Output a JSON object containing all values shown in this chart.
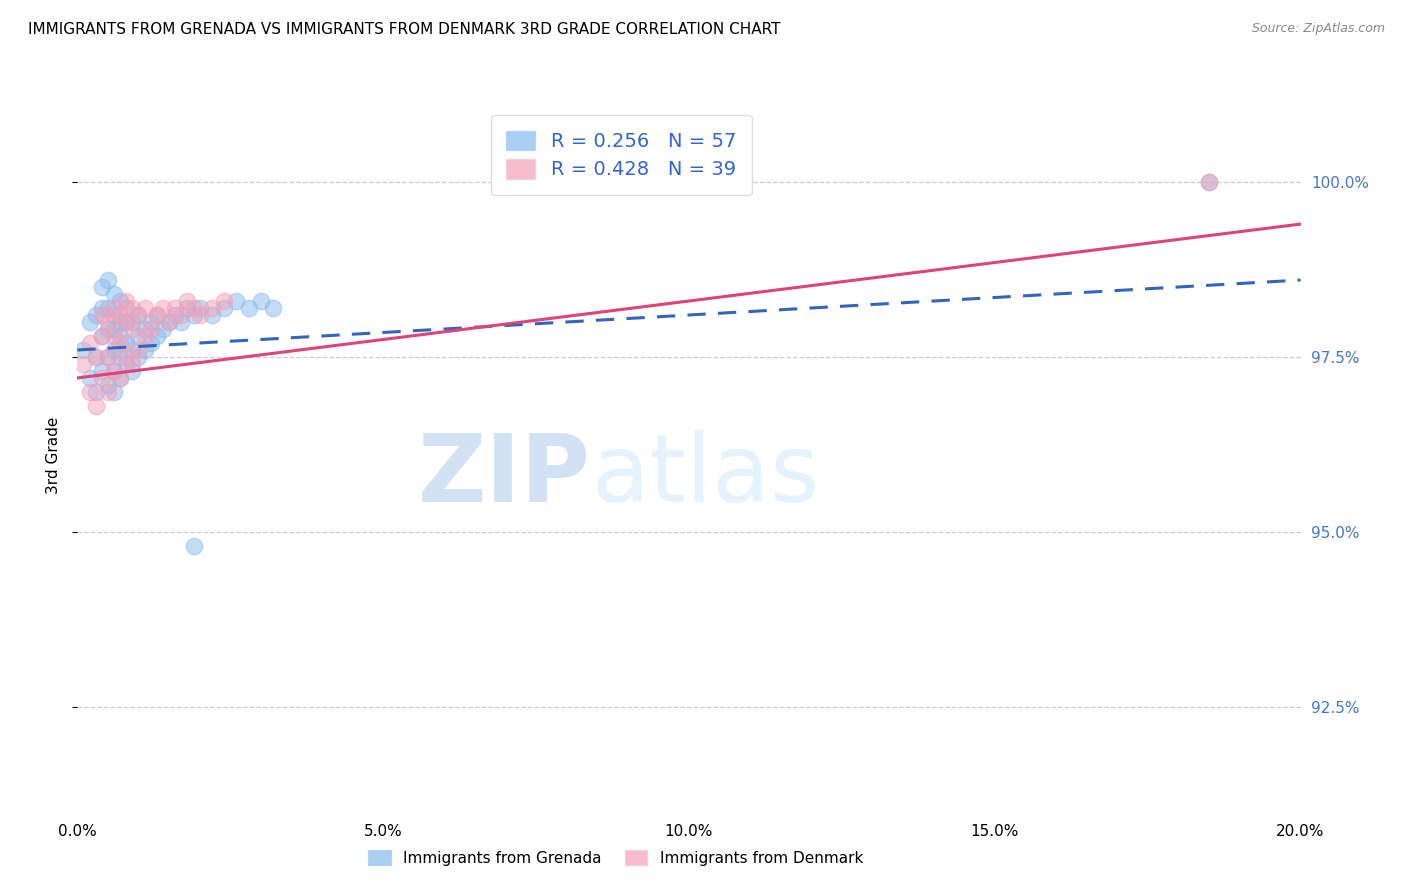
{
  "title": "IMMIGRANTS FROM GRENADA VS IMMIGRANTS FROM DENMARK 3RD GRADE CORRELATION CHART",
  "source": "Source: ZipAtlas.com",
  "ylabel_left": "3rd Grade",
  "xlim": [
    0.0,
    0.2
  ],
  "ylim": [
    91.0,
    101.2
  ],
  "yticks": [
    92.5,
    95.0,
    97.5,
    100.0
  ],
  "xticks": [
    0.0,
    0.05,
    0.1,
    0.15,
    0.2
  ],
  "blue_label": "Immigrants from Grenada",
  "pink_label": "Immigrants from Denmark",
  "blue_R": 0.256,
  "blue_N": 57,
  "pink_R": 0.428,
  "pink_N": 39,
  "blue_color": "#88bbee",
  "pink_color": "#f4a0b8",
  "blue_line_color": "#3366bb",
  "pink_line_color": "#dd4477",
  "watermark_zip": "ZIP",
  "watermark_atlas": "atlas",
  "blue_x": [
    0.001,
    0.002,
    0.002,
    0.003,
    0.003,
    0.003,
    0.004,
    0.004,
    0.004,
    0.004,
    0.005,
    0.005,
    0.005,
    0.005,
    0.005,
    0.006,
    0.006,
    0.006,
    0.006,
    0.006,
    0.006,
    0.007,
    0.007,
    0.007,
    0.007,
    0.007,
    0.008,
    0.008,
    0.008,
    0.008,
    0.009,
    0.009,
    0.009,
    0.01,
    0.01,
    0.01,
    0.011,
    0.011,
    0.012,
    0.012,
    0.013,
    0.013,
    0.014,
    0.015,
    0.016,
    0.017,
    0.018,
    0.019,
    0.02,
    0.022,
    0.024,
    0.026,
    0.028,
    0.03,
    0.032,
    0.019,
    0.185
  ],
  "blue_y": [
    97.6,
    97.2,
    98.0,
    97.0,
    97.5,
    98.1,
    97.3,
    97.8,
    98.2,
    98.5,
    97.1,
    97.5,
    97.9,
    98.2,
    98.6,
    97.0,
    97.3,
    97.6,
    97.9,
    98.1,
    98.4,
    97.2,
    97.5,
    97.8,
    98.0,
    98.3,
    97.4,
    97.7,
    98.0,
    98.2,
    97.3,
    97.6,
    98.0,
    97.5,
    97.8,
    98.1,
    97.6,
    97.9,
    97.7,
    98.0,
    97.8,
    98.1,
    97.9,
    98.0,
    98.1,
    98.0,
    98.2,
    98.1,
    98.2,
    98.1,
    98.2,
    98.3,
    98.2,
    98.3,
    98.2,
    94.8,
    100.0
  ],
  "pink_x": [
    0.001,
    0.002,
    0.002,
    0.003,
    0.003,
    0.004,
    0.004,
    0.004,
    0.005,
    0.005,
    0.005,
    0.006,
    0.006,
    0.006,
    0.007,
    0.007,
    0.007,
    0.008,
    0.008,
    0.008,
    0.009,
    0.009,
    0.009,
    0.01,
    0.01,
    0.011,
    0.011,
    0.012,
    0.013,
    0.014,
    0.015,
    0.016,
    0.017,
    0.018,
    0.019,
    0.02,
    0.022,
    0.024,
    0.185
  ],
  "pink_y": [
    97.4,
    97.0,
    97.7,
    96.8,
    97.5,
    97.2,
    97.8,
    98.1,
    97.0,
    97.5,
    98.0,
    97.3,
    97.8,
    98.2,
    97.2,
    97.7,
    98.1,
    97.5,
    98.0,
    98.3,
    97.4,
    97.9,
    98.2,
    97.6,
    98.1,
    97.8,
    98.2,
    97.9,
    98.1,
    98.2,
    98.0,
    98.2,
    98.1,
    98.3,
    98.2,
    98.1,
    98.2,
    98.3,
    100.0
  ],
  "blue_line_x": [
    0.0,
    0.2
  ],
  "blue_line_y": [
    97.6,
    98.6
  ],
  "pink_line_x": [
    0.0,
    0.2
  ],
  "pink_line_y": [
    97.2,
    99.4
  ]
}
